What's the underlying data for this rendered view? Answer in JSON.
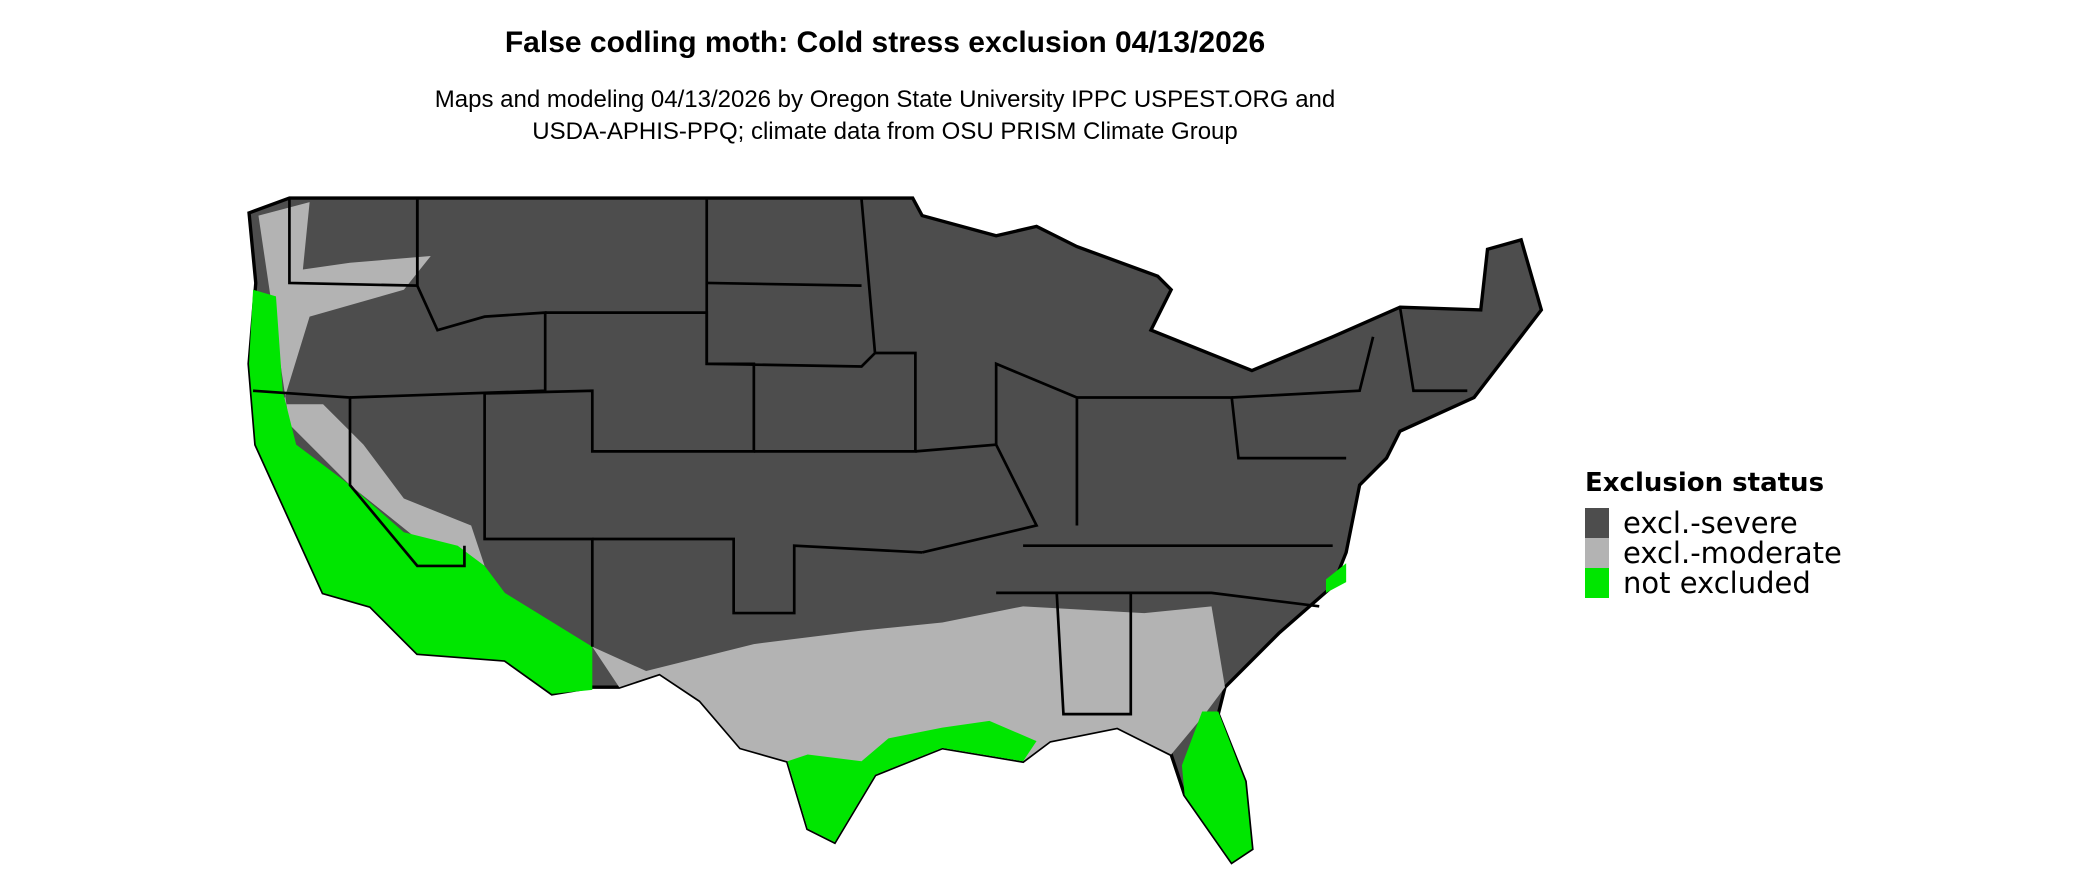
{
  "title": "False codling moth: Cold stress exclusion 04/13/2026",
  "subtitle_line1": "Maps and modeling 04/13/2026 by Oregon State University IPPC USPEST.ORG and",
  "subtitle_line2": "USDA-APHIS-PPQ; climate data from OSU PRISM Climate Group",
  "legend": {
    "title": "Exclusion status",
    "items": [
      {
        "label": "excl.-severe",
        "color": "#4d4d4d"
      },
      {
        "label": "excl.-moderate",
        "color": "#b3b3b3"
      },
      {
        "label": "not excluded",
        "color": "#00e600"
      }
    ]
  },
  "map": {
    "region": "Contiguous United States",
    "border_color": "#000000"
  }
}
